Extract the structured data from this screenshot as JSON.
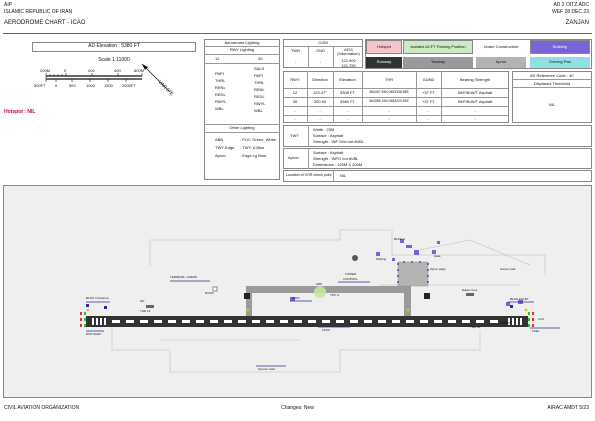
{
  "header": {
    "aip": "AIP",
    "state": "ISLAMIC REPUBLIC OF IRAN",
    "chart_title": "AERODROME CHART - ICAO",
    "page_ref": "AD 2 OITZ ADC",
    "effective": "WEF 28 DEC 23",
    "city": "ZANJAN"
  },
  "elevation": {
    "text": "AD Elevation :  5380 FT"
  },
  "scale": {
    "title": "Scale 1:11000",
    "m_unit": "200M",
    "ft_unit": "500FT",
    "m_ticks": [
      "0",
      "200",
      "400",
      "600M"
    ],
    "ft_ticks": [
      "0",
      "500",
      "1000",
      "1500",
      "2000FT"
    ],
    "var": "VAR 5°E"
  },
  "hotspot": "Hotspot : NIL",
  "lighting": {
    "title": "Aerodrome Lighting",
    "rwy_title": "RWY Lighting",
    "rwy_a": "12",
    "rwy_b": "30",
    "left": [
      "PAPI",
      "THRL",
      "RENL",
      "REDL",
      "RWYL",
      "WBL"
    ],
    "right": [
      "SALS",
      "PAPI",
      "THRL",
      "RENL",
      "REDL",
      "RWYL",
      "WBL"
    ]
  },
  "other_lighting": {
    "title": "Other Lighting",
    "rows": [
      {
        "k": "ABN",
        "v": ": FLG: Green, White"
      },
      {
        "k": "TWY Edge",
        "v": ": TWY: A Blue"
      },
      {
        "k": "Apron",
        "v": ": Edge Lg Blue"
      }
    ]
  },
  "com": {
    "title": "COM",
    "headers": [
      "TWR",
      "GND",
      "AFIS (Information)"
    ],
    "values": [
      "-",
      "-",
      ""
    ],
    "afis_freqs": [
      "122.900",
      "121.750"
    ]
  },
  "legend": {
    "hotspot": "Hotspot",
    "isolated": "Isolated ACFT Parking Position",
    "construction": "Under Construction",
    "building": "Building",
    "runway": "Runway",
    "taxiway": "Taxiway",
    "apron": "Apron",
    "deicing": "Deicing Pad"
  },
  "colors": {
    "hotspot": "#f7c3cf",
    "isolated": "#cfe9c4",
    "building": "#7864d6",
    "runway": "#333333",
    "taxiway": "#9a9a9a",
    "apron": "#b3b3b3",
    "deicing": "#8fe0e3",
    "rwy_marking": "#111111",
    "twy_line": "#f0c000",
    "ahlgs": "#2a2a9c",
    "green_light": "#2fbf3a",
    "red_light": "#e03030"
  },
  "runway_table": {
    "headers": [
      "RWY",
      "Direction",
      "Elevation",
      "THR",
      "GUND",
      "Bearing Strength"
    ],
    "rows": [
      [
        "12",
        "120.47°",
        "5308 FT",
        "364457.94N 0483338.85E",
        "+37 FT",
        "59/F/B/W/T  Asphalt"
      ],
      [
        "30",
        "300.52",
        "5380 FT",
        "364356.19N 0483223.51E",
        "+37 FT",
        "59/F/B/W/T  Asphalt"
      ],
      [
        "-",
        "-",
        "-",
        "-",
        "-",
        "-"
      ],
      [
        "-",
        "-",
        "-",
        "-",
        "-",
        "-"
      ]
    ]
  },
  "ref": {
    "code": "AD Reference Code :  4C",
    "displaced": "Displaced Threshold",
    "nil": "NIL"
  },
  "twy": {
    "label": "TWY",
    "lines": [
      "Width       : 23M",
      "Surface    : Asphalt",
      "Strength  : INF Grid not AVBL"
    ]
  },
  "apron": {
    "label": "Apron",
    "lines": [
      "Surface         : Asphalt",
      "Strength        : INFO not AVBL",
      "Dimensions    : 120M X 200M"
    ]
  },
  "vor": {
    "label": "Location of VOR check point",
    "value": "NIL"
  },
  "map_labels": {
    "bldg_w": "BLDG 3 Antenna",
    "mid": "TERMINAL / ADMIN",
    "tower": "TOWER",
    "tower2": "CONTROL",
    "ne": "Annex road",
    "thr_w": "THR 12",
    "thr_e": "THR 30",
    "dist": "DIST ELEV",
    "rwy_code": "12/30",
    "ahl": "ASSY",
    "bldg_e": "BLDG EQUIP",
    "fuel": "FUEL",
    "south": "Service road",
    "ne2": "Parking",
    "gate": "Gate",
    "tw": "TWY A",
    "lbl1": "BLDG 4",
    "lbl2": "ARP",
    "lbl3": "Apron edge",
    "lbl4": "Equip room",
    "lbl5": "LOC",
    "lbl6": "GP",
    "lbl7": "DVOR",
    "lbl8": "TEMPO"
  },
  "footer": {
    "org": "CIVIL AVIATION ORGANIZATION",
    "changes": "Changes: New",
    "airac": "AIRAC AMDT 5/23"
  }
}
